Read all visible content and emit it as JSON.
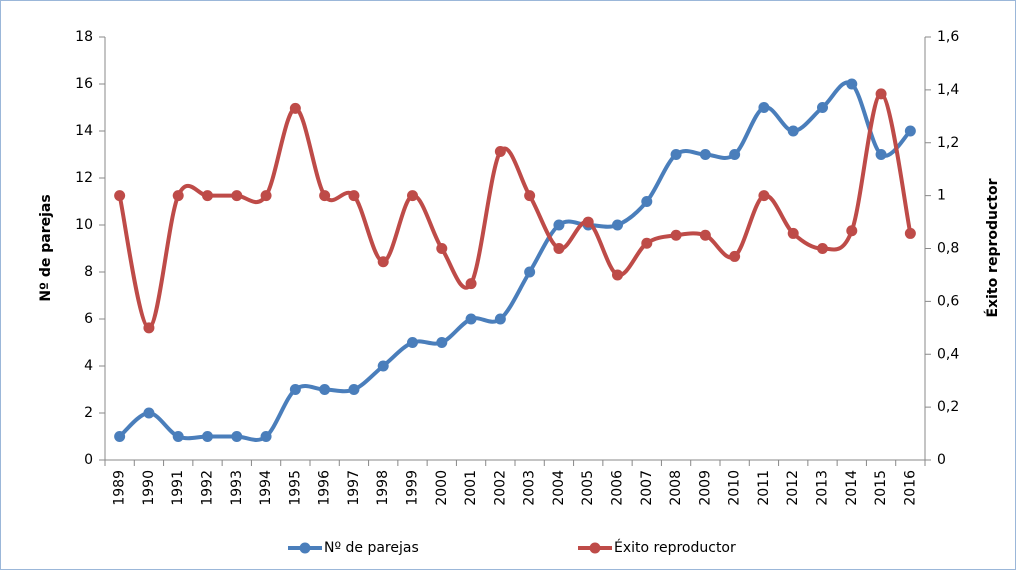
{
  "chart_data": {
    "type": "line",
    "categories": [
      "1989",
      "1990",
      "1991",
      "1992",
      "1993",
      "1994",
      "1995",
      "1996",
      "1997",
      "1998",
      "1999",
      "2000",
      "2001",
      "2002",
      "2003",
      "2004",
      "2005",
      "2006",
      "2007",
      "2008",
      "2009",
      "2010",
      "2011",
      "2012",
      "2013",
      "2014",
      "2015",
      "2016"
    ],
    "series": [
      {
        "name": "Nº de parejas",
        "color": "#4a7ebb",
        "axis": "y",
        "values": [
          1,
          2,
          1,
          1,
          1,
          1,
          3,
          3,
          3,
          4,
          5,
          5,
          6,
          6,
          8,
          10,
          10,
          10,
          11,
          13,
          13,
          13,
          15,
          14,
          15,
          16,
          13,
          14
        ]
      },
      {
        "name": "Éxito reproductor",
        "color": "#be4b48",
        "axis": "y2",
        "values": [
          1,
          0.5,
          1,
          1,
          1,
          1,
          1.33,
          1,
          1,
          0.75,
          1,
          0.8,
          0.667,
          1.167,
          1,
          0.8,
          0.9,
          0.7,
          0.82,
          0.85,
          0.85,
          0.77,
          1,
          0.857,
          0.8,
          0.867,
          1.385,
          0.857
        ]
      }
    ],
    "ylabel": "Nº de parejas",
    "y2label": "Éxito reproductor",
    "ylim": [
      0,
      18
    ],
    "yticks": [
      0,
      2,
      4,
      6,
      8,
      10,
      12,
      14,
      16,
      18
    ],
    "y2lim": [
      0,
      1.6
    ],
    "y2ticks": [
      0,
      {
        "value": 0.2,
        "label": "0,2"
      },
      {
        "value": 0.4,
        "label": "0,4"
      },
      {
        "value": 0.6,
        "label": "0,6"
      },
      {
        "value": 0.8,
        "label": "0,8"
      },
      1,
      {
        "value": 1.2,
        "label": "1,2"
      },
      {
        "value": 1.4,
        "label": "1,4"
      },
      {
        "value": 1.6,
        "label": "1,6"
      }
    ],
    "legend": "bottom",
    "smooth": true,
    "grid": false
  }
}
